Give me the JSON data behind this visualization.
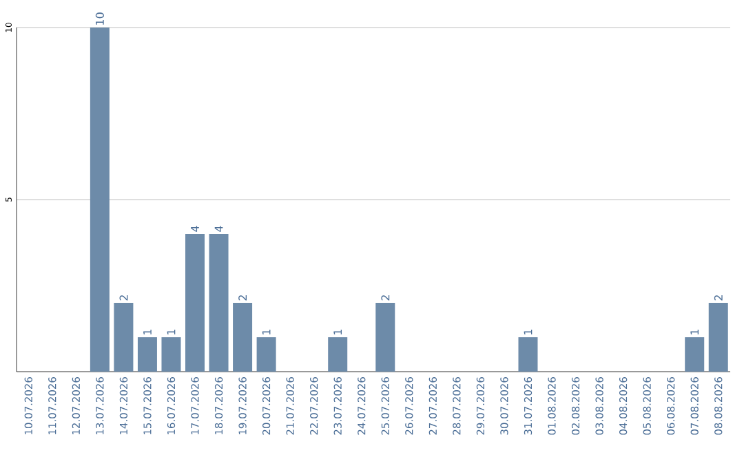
{
  "chart_data": {
    "type": "bar",
    "categories": [
      "10.07.2026",
      "11.07.2026",
      "12.07.2026",
      "13.07.2026",
      "14.07.2026",
      "15.07.2026",
      "16.07.2026",
      "17.07.2026",
      "18.07.2026",
      "19.07.2026",
      "20.07.2026",
      "21.07.2026",
      "22.07.2026",
      "23.07.2026",
      "24.07.2026",
      "25.07.2026",
      "26.07.2026",
      "27.07.2026",
      "28.07.2026",
      "29.07.2026",
      "30.07.2026",
      "31.07.2026",
      "01.08.2026",
      "02.08.2026",
      "03.08.2026",
      "04.08.2026",
      "05.08.2026",
      "06.08.2026",
      "07.08.2026",
      "08.08.2026"
    ],
    "values": [
      0,
      0,
      0,
      10,
      2,
      1,
      1,
      4,
      4,
      2,
      1,
      0,
      0,
      1,
      0,
      2,
      0,
      0,
      0,
      0,
      0,
      1,
      0,
      0,
      0,
      0,
      0,
      0,
      1,
      2
    ],
    "value_labels": [
      null,
      null,
      null,
      "10",
      "2",
      "1",
      "1",
      "4",
      "4",
      "2",
      "1",
      null,
      null,
      "1",
      null,
      "2",
      null,
      null,
      null,
      null,
      null,
      "1",
      null,
      null,
      null,
      null,
      null,
      null,
      "1",
      "2"
    ],
    "color": "#6d8ba9",
    "ylim": [
      0,
      10
    ],
    "yticks": [
      5,
      10
    ],
    "grid": "y"
  }
}
